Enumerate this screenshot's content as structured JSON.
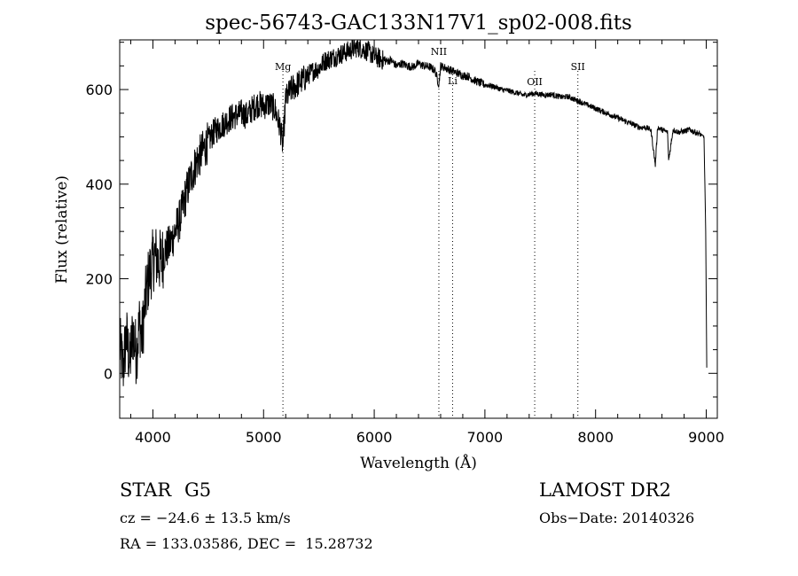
{
  "chart_data": {
    "type": "line",
    "title": "spec-56743-GAC133N17V1_sp02-008.fits",
    "xlabel": "Wavelength (Å)",
    "ylabel": "Flux (relative)",
    "xlim": [
      3700,
      9100
    ],
    "ylim": [
      -95,
      705
    ],
    "x_ticks": [
      4000,
      5000,
      6000,
      7000,
      8000,
      9000
    ],
    "y_ticks": [
      0,
      200,
      400,
      600
    ],
    "grid": false,
    "legend": "none",
    "line_color": "#000000",
    "spectral_lines": [
      {
        "label": "Mg",
        "wavelength": 5175
      },
      {
        "label": "NII",
        "wavelength": 6584
      },
      {
        "label": "Li",
        "wavelength": 6708
      },
      {
        "label": "OII",
        "wavelength": 7450
      },
      {
        "label": "SII",
        "wavelength": 7840
      }
    ],
    "series": [
      {
        "x": [
          3700,
          3730,
          3760,
          3790,
          3820,
          3850,
          3880,
          3900,
          3930,
          3960,
          3990,
          4020,
          4050,
          4080,
          4110,
          4150,
          4200,
          4250,
          4300,
          4350,
          4400,
          4450,
          4500,
          4550,
          4600,
          4650,
          4700,
          4750,
          4800,
          4850,
          4900,
          4950,
          5000,
          5050,
          5100,
          5150,
          5175,
          5200,
          5250,
          5300,
          5350,
          5400,
          5450,
          5500,
          5550,
          5600,
          5650,
          5700,
          5750,
          5800,
          5850,
          5900,
          5950,
          6000,
          6050,
          6100,
          6150,
          6200,
          6250,
          6300,
          6350,
          6400,
          6450,
          6500,
          6550,
          6584,
          6600,
          6650,
          6700,
          6750,
          6800,
          6850,
          6900,
          6950,
          7000,
          7050,
          7100,
          7150,
          7200,
          7250,
          7300,
          7350,
          7400,
          7450,
          7500,
          7550,
          7600,
          7650,
          7700,
          7750,
          7800,
          7850,
          7900,
          7950,
          8000,
          8050,
          8100,
          8150,
          8200,
          8250,
          8300,
          8350,
          8400,
          8450,
          8500,
          8540,
          8560,
          8600,
          8650,
          8660,
          8700,
          8750,
          8800,
          8850,
          8900,
          8950,
          8980,
          8995,
          9005
        ],
        "y": [
          60,
          10,
          80,
          20,
          90,
          40,
          110,
          70,
          150,
          200,
          230,
          250,
          235,
          240,
          260,
          270,
          300,
          330,
          380,
          420,
          450,
          470,
          490,
          510,
          520,
          530,
          540,
          545,
          550,
          545,
          560,
          570,
          565,
          570,
          560,
          520,
          480,
          580,
          600,
          610,
          620,
          630,
          640,
          645,
          660,
          665,
          670,
          675,
          680,
          685,
          690,
          685,
          680,
          670,
          665,
          660,
          662,
          650,
          655,
          650,
          648,
          655,
          650,
          648,
          640,
          610,
          650,
          645,
          640,
          635,
          630,
          628,
          620,
          615,
          610,
          608,
          605,
          600,
          598,
          595,
          592,
          588,
          590,
          592,
          590,
          588,
          590,
          586,
          584,
          585,
          580,
          575,
          570,
          565,
          560,
          555,
          550,
          545,
          540,
          535,
          530,
          525,
          520,
          520,
          515,
          440,
          520,
          515,
          510,
          450,
          515,
          510,
          512,
          515,
          510,
          505,
          500,
          300,
          10
        ]
      }
    ]
  },
  "footer": {
    "object_class": "STAR",
    "subclass": "G5",
    "cz": "cz = −24.6 ± 13.5 km/s",
    "coords": "RA = 133.03586, DEC =  15.28732",
    "survey": "LAMOST DR2",
    "obs_date": "Obs−Date: 20140326"
  }
}
